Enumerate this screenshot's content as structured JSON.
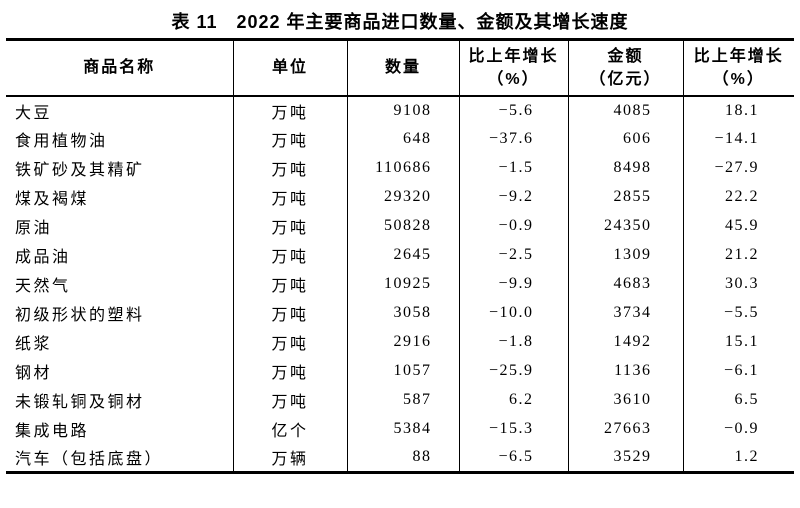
{
  "page": {
    "title": "表 11　2022 年主要商品进口数量、金额及其增长速度"
  },
  "table": {
    "columns": {
      "name": "商品名称",
      "unit": "单位",
      "quantity": "数量",
      "qty_growth_line1": "比上年增长",
      "qty_growth_line2": "（%）",
      "value_line1": "金额",
      "value_line2": "（亿元）",
      "val_growth_line1": "比上年增长",
      "val_growth_line2": "（%）"
    },
    "rows": [
      {
        "name": "大豆",
        "unit": "万吨",
        "quantity": "9108",
        "qty_growth": "−5.6",
        "value": "4085",
        "val_growth": "18.1"
      },
      {
        "name": "食用植物油",
        "unit": "万吨",
        "quantity": "648",
        "qty_growth": "−37.6",
        "value": "606",
        "val_growth": "−14.1"
      },
      {
        "name": "铁矿砂及其精矿",
        "unit": "万吨",
        "quantity": "110686",
        "qty_growth": "−1.5",
        "value": "8498",
        "val_growth": "−27.9"
      },
      {
        "name": "煤及褐煤",
        "unit": "万吨",
        "quantity": "29320",
        "qty_growth": "−9.2",
        "value": "2855",
        "val_growth": "22.2"
      },
      {
        "name": "原油",
        "unit": "万吨",
        "quantity": "50828",
        "qty_growth": "−0.9",
        "value": "24350",
        "val_growth": "45.9"
      },
      {
        "name": "成品油",
        "unit": "万吨",
        "quantity": "2645",
        "qty_growth": "−2.5",
        "value": "1309",
        "val_growth": "21.2"
      },
      {
        "name": "天然气",
        "unit": "万吨",
        "quantity": "10925",
        "qty_growth": "−9.9",
        "value": "4683",
        "val_growth": "30.3"
      },
      {
        "name": "初级形状的塑料",
        "unit": "万吨",
        "quantity": "3058",
        "qty_growth": "−10.0",
        "value": "3734",
        "val_growth": "−5.5"
      },
      {
        "name": "纸浆",
        "unit": "万吨",
        "quantity": "2916",
        "qty_growth": "−1.8",
        "value": "1492",
        "val_growth": "15.1"
      },
      {
        "name": "钢材",
        "unit": "万吨",
        "quantity": "1057",
        "qty_growth": "−25.9",
        "value": "1136",
        "val_growth": "−6.1"
      },
      {
        "name": "未锻轧铜及铜材",
        "unit": "万吨",
        "quantity": "587",
        "qty_growth": "6.2",
        "value": "3610",
        "val_growth": "6.5"
      },
      {
        "name": "集成电路",
        "unit": "亿个",
        "quantity": "5384",
        "qty_growth": "−15.3",
        "value": "27663",
        "val_growth": "−0.9"
      },
      {
        "name": "汽车（包括底盘）",
        "unit": "万辆",
        "quantity": "88",
        "qty_growth": "−6.5",
        "value": "3529",
        "val_growth": "1.2"
      }
    ]
  },
  "chart_data": {
    "type": "table",
    "title": "表 11　2022 年主要商品进口数量、金额及其增长速度",
    "columns": [
      "商品名称",
      "单位",
      "数量",
      "比上年增长（%）",
      "金额（亿元）",
      "比上年增长（%）"
    ],
    "rows": [
      [
        "大豆",
        "万吨",
        9108,
        -5.6,
        4085,
        18.1
      ],
      [
        "食用植物油",
        "万吨",
        648,
        -37.6,
        606,
        -14.1
      ],
      [
        "铁矿砂及其精矿",
        "万吨",
        110686,
        -1.5,
        8498,
        -27.9
      ],
      [
        "煤及褐煤",
        "万吨",
        29320,
        -9.2,
        2855,
        22.2
      ],
      [
        "原油",
        "万吨",
        50828,
        -0.9,
        24350,
        45.9
      ],
      [
        "成品油",
        "万吨",
        2645,
        -2.5,
        1309,
        21.2
      ],
      [
        "天然气",
        "万吨",
        10925,
        -9.9,
        4683,
        30.3
      ],
      [
        "初级形状的塑料",
        "万吨",
        3058,
        -10.0,
        3734,
        -5.5
      ],
      [
        "纸浆",
        "万吨",
        2916,
        -1.8,
        1492,
        15.1
      ],
      [
        "钢材",
        "万吨",
        1057,
        -25.9,
        1136,
        -6.1
      ],
      [
        "未锻轧铜及铜材",
        "万吨",
        587,
        6.2,
        3610,
        6.5
      ],
      [
        "集成电路",
        "亿个",
        5384,
        -15.3,
        27663,
        -0.9
      ],
      [
        "汽车（包括底盘）",
        "万辆",
        88,
        -6.5,
        3529,
        1.2
      ]
    ]
  }
}
